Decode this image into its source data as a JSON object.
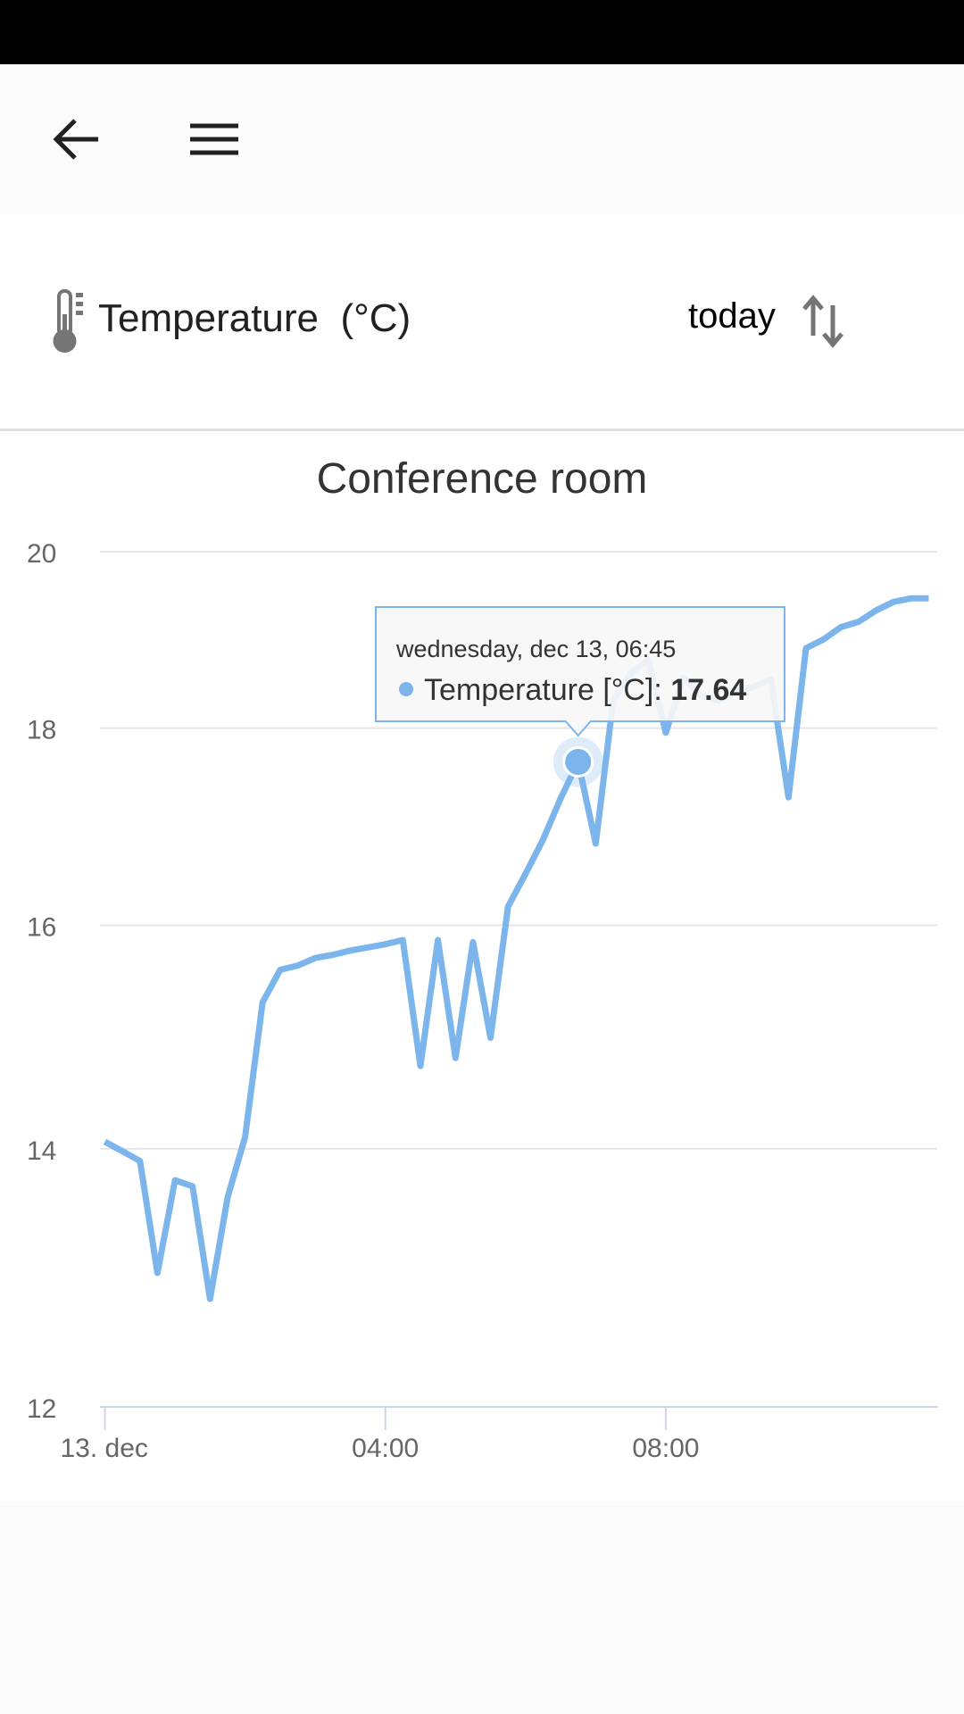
{
  "header": {
    "title": "Temperature  (°C)",
    "range_label": "today",
    "icons": {
      "back": "arrow-left-icon",
      "menu": "hamburger-menu-icon",
      "sensor": "thermometer-icon",
      "sort": "swap-vertical-icon"
    }
  },
  "tooltip": {
    "date": "wednesday, dec 13, 06:45",
    "series_label": "Temperature [°C]: ",
    "value": "17.64"
  },
  "colors": {
    "series": "#7cb5ec",
    "grid": "#e6e6e6",
    "axis": "#ccd6eb"
  },
  "chart_data": {
    "type": "line",
    "title": "Conference room",
    "y_scale": "log",
    "ylim": [
      12,
      20
    ],
    "yticks": [
      12,
      14,
      16,
      18,
      20
    ],
    "xticks": [
      {
        "x": "00:00",
        "label": "13. dec"
      },
      {
        "x": "04:00",
        "label": "04:00"
      },
      {
        "x": "08:00",
        "label": "08:00"
      }
    ],
    "grid": true,
    "series": [
      {
        "name": "Temperature [°C]",
        "x": [
          "00:00",
          "00:15",
          "00:30",
          "00:45",
          "01:00",
          "01:15",
          "01:30",
          "01:45",
          "02:00",
          "02:15",
          "02:30",
          "02:45",
          "03:00",
          "03:15",
          "03:30",
          "03:45",
          "04:00",
          "04:15",
          "04:30",
          "04:45",
          "05:00",
          "05:15",
          "05:30",
          "05:45",
          "06:00",
          "06:15",
          "06:30",
          "06:45",
          "07:00",
          "07:15",
          "07:30",
          "07:45",
          "08:00",
          "08:15",
          "08:30",
          "08:45",
          "09:00",
          "09:15",
          "09:30",
          "09:45",
          "10:00",
          "10:15",
          "10:30",
          "10:45",
          "11:00",
          "11:15",
          "11:30",
          "11:45"
        ],
        "y": [
          14.06,
          13.98,
          13.9,
          13.0,
          13.74,
          13.69,
          12.8,
          13.6,
          14.1,
          15.28,
          15.58,
          15.62,
          15.69,
          15.72,
          15.76,
          15.79,
          15.82,
          15.86,
          14.71,
          15.86,
          14.78,
          15.84,
          14.96,
          16.18,
          16.5,
          16.84,
          17.26,
          17.64,
          16.8,
          18.3,
          18.6,
          18.75,
          17.95,
          18.55,
          18.35,
          18.3,
          18.4,
          18.45,
          18.53,
          17.27,
          18.88,
          18.98,
          19.12,
          19.18,
          19.31,
          19.41,
          19.45,
          19.45
        ]
      }
    ],
    "highlighted_x": "06:45"
  }
}
